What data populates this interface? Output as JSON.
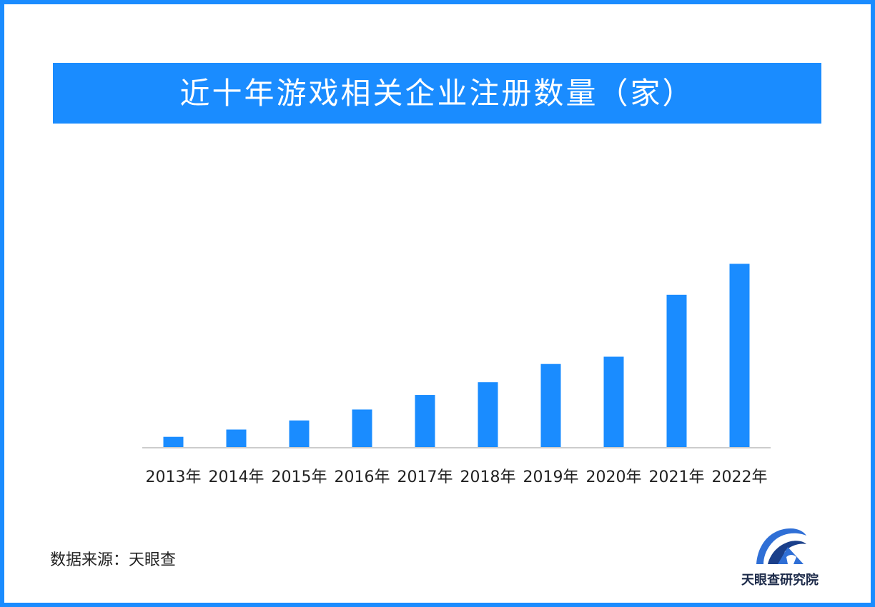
{
  "title": "近十年游戏相关企业注册数量（家）",
  "source": "数据来源：天眼查",
  "logo": {
    "text": "天眼查研究院",
    "icon": "tianyancha-logo-icon"
  },
  "colors": {
    "accent": "#1a8cff",
    "bar": "#1a8cff",
    "axis": "#cccccc",
    "text": "#222222"
  },
  "chart_data": {
    "type": "bar",
    "title": "近十年游戏相关企业注册数量（家）",
    "xlabel": "",
    "ylabel": "",
    "categories": [
      "2013年",
      "2014年",
      "2015年",
      "2016年",
      "2017年",
      "2018年",
      "2019年",
      "2020年",
      "2021年",
      "2022年"
    ],
    "values": [
      6,
      10,
      15,
      21,
      29,
      36,
      46,
      50,
      84,
      101
    ],
    "ylim": [
      0,
      200
    ],
    "grid": false,
    "legend": "none"
  }
}
